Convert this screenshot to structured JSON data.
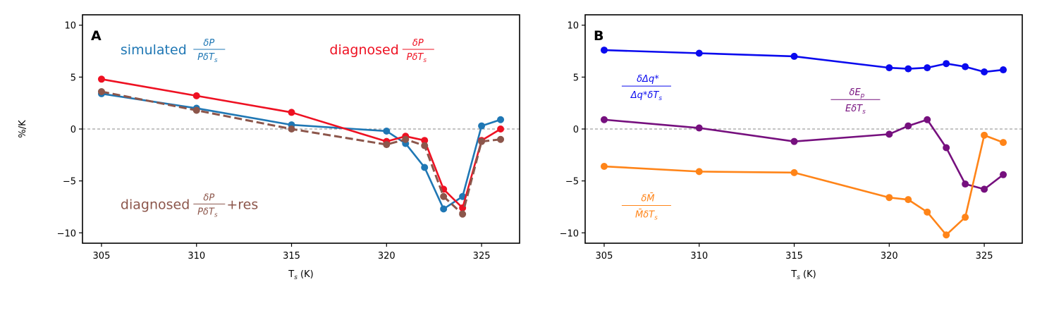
{
  "chart_data": [
    {
      "type": "line",
      "panel": "A",
      "title": "",
      "xlabel": "T_s (K)",
      "ylabel": "%/K",
      "xlim": [
        304,
        327
      ],
      "ylim": [
        -11,
        11
      ],
      "xticks": [
        305,
        310,
        315,
        320,
        325
      ],
      "yticks": [
        -10,
        -5,
        0,
        5,
        10
      ],
      "zero_line": true,
      "x": [
        305,
        310,
        315,
        320,
        321,
        322,
        323,
        324,
        325,
        326
      ],
      "series": [
        {
          "name": "simulated dP/(P dTs)",
          "color": "#1f77b4",
          "style": "solid",
          "values": [
            3.4,
            2.0,
            0.4,
            -0.2,
            -1.4,
            -3.7,
            -7.7,
            -6.5,
            0.3,
            0.9
          ]
        },
        {
          "name": "diagnosed dP/(P dTs)",
          "color": "#ee1122",
          "style": "solid",
          "values": [
            4.8,
            3.2,
            1.6,
            -1.2,
            -0.7,
            -1.1,
            -5.8,
            -7.6,
            -1.1,
            0.0
          ]
        },
        {
          "name": "diagnosed dP/(P dTs)+res",
          "color": "#8c564b",
          "style": "dashed",
          "values": [
            3.6,
            1.8,
            0.0,
            -1.5,
            -1.0,
            -1.6,
            -6.5,
            -8.2,
            -1.2,
            -1.0
          ]
        }
      ],
      "annotations": [
        {
          "text": "simulated",
          "frac_num": "δP",
          "frac_den": "PδT",
          "suffix": "",
          "color": "#1f77b4",
          "x": 306,
          "y": 7.2
        },
        {
          "text": "diagnosed",
          "frac_num": "δP",
          "frac_den": "PδT",
          "suffix": "",
          "color": "#ee1122",
          "x": 317,
          "y": 7.2
        },
        {
          "text": "diagnosed",
          "frac_num": "δP",
          "frac_den": "PδT",
          "suffix": "+res",
          "color": "#8c564b",
          "x": 306,
          "y": -7.7
        }
      ]
    },
    {
      "type": "line",
      "panel": "B",
      "title": "",
      "xlabel": "T_s (K)",
      "ylabel": "",
      "xlim": [
        304,
        327
      ],
      "ylim": [
        -11,
        11
      ],
      "xticks": [
        305,
        310,
        315,
        320,
        325
      ],
      "yticks": [
        -10,
        -5,
        0,
        5,
        10
      ],
      "zero_line": true,
      "x": [
        305,
        310,
        315,
        320,
        321,
        322,
        323,
        324,
        325,
        326
      ],
      "series": [
        {
          "name": "dΔq*/(Δq* dTs)",
          "color": "#0a0aee",
          "style": "solid",
          "values": [
            7.6,
            7.3,
            7.0,
            5.9,
            5.8,
            5.9,
            6.3,
            6.0,
            5.5,
            5.7
          ]
        },
        {
          "name": "dEp/(Ep dTs)",
          "color": "#76107e",
          "style": "solid",
          "values": [
            0.9,
            0.1,
            -1.2,
            -0.5,
            0.3,
            0.9,
            -1.8,
            -5.3,
            -5.8,
            -4.4
          ]
        },
        {
          "name": "dM/(M dTs)",
          "color": "#ff8418",
          "style": "solid",
          "values": [
            -3.6,
            -4.1,
            -4.2,
            -6.6,
            -6.8,
            -8.0,
            -10.2,
            -8.5,
            -0.6,
            -1.3
          ]
        }
      ],
      "annotations": [
        {
          "num": "δΔq*",
          "den": "Δq*δT",
          "color": "#0a0aee",
          "x": 306,
          "y": 4.0
        },
        {
          "num": "δE",
          "den": "EδT",
          "color": "#76107e",
          "x": 317,
          "y": 2.7
        },
        {
          "num": "δM̄",
          "den": "M̄δT",
          "color": "#ff8418",
          "x": 306,
          "y": -7.5
        }
      ]
    }
  ],
  "labels": {
    "panel_a": "A",
    "panel_b": "B",
    "ylabel": "%/K",
    "xlabel": "T",
    "xlabel_sub": "s",
    "xlabel_unit": " (K)"
  }
}
